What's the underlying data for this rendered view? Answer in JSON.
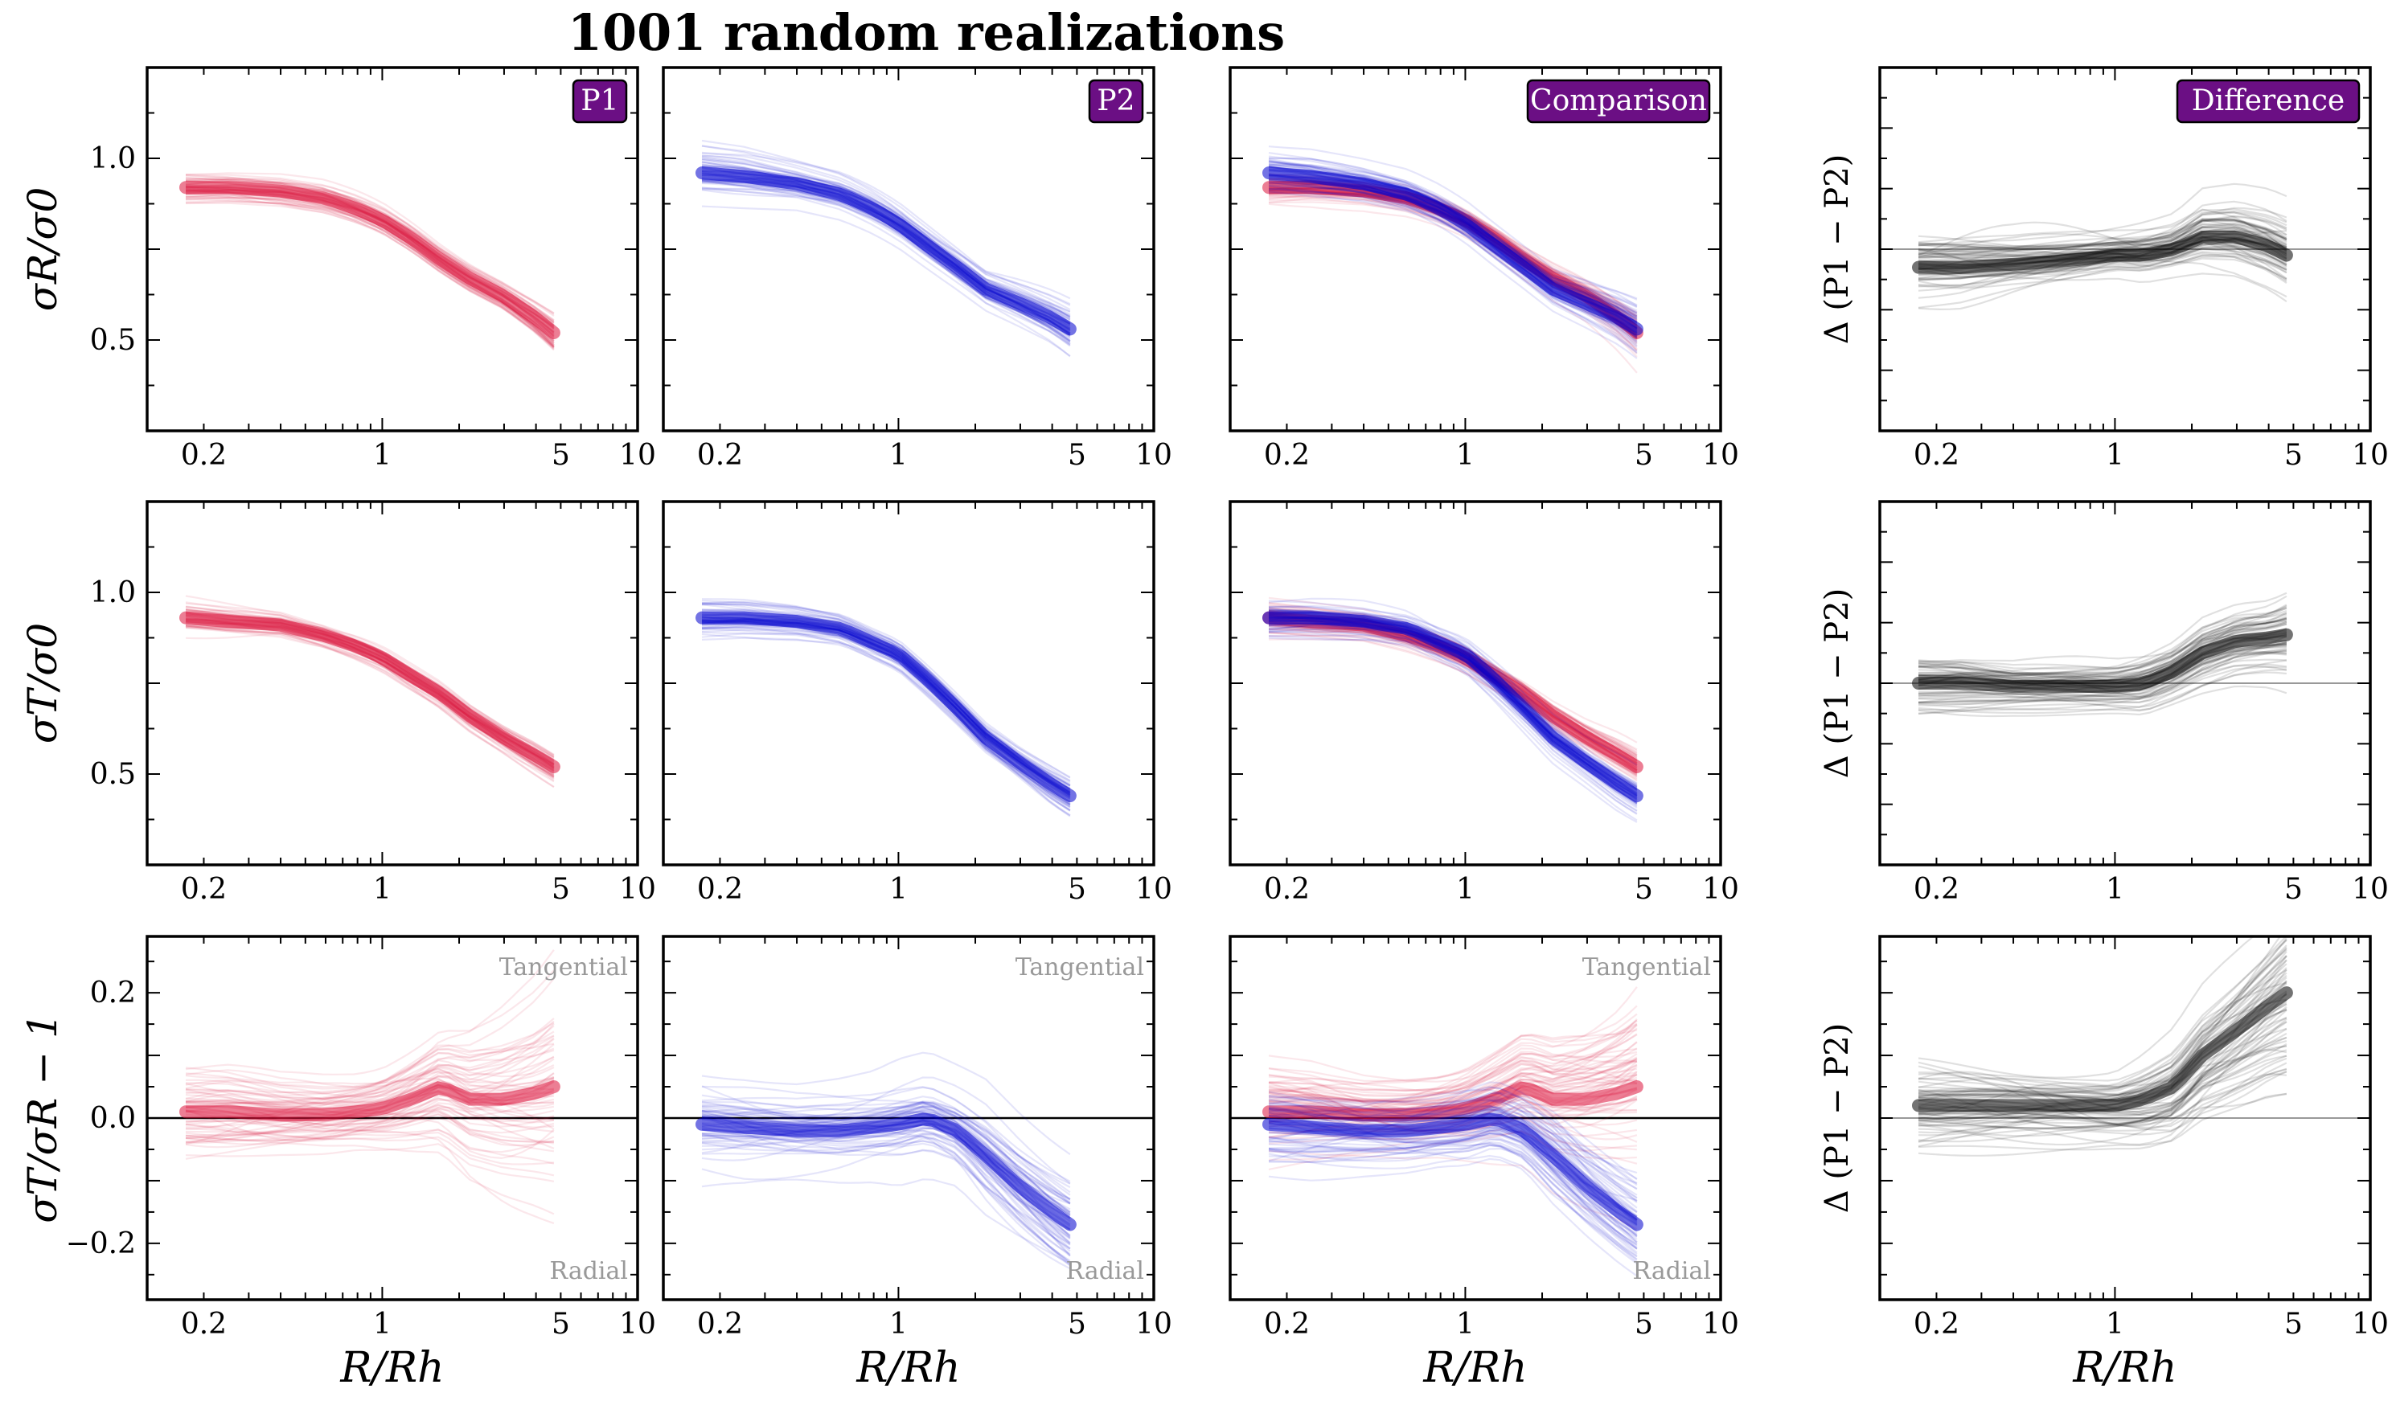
{
  "figure": {
    "title": "1001 random realizations"
  },
  "colors": {
    "p1": "#dc143c",
    "p2": "#0000cd",
    "diff": "#000000",
    "badge": "#6b0f84",
    "annotation": "#999999",
    "zero_line": "#000000",
    "diff_zero_line": "#999999"
  },
  "axis_text": {
    "xlabel": "R/Rh",
    "ylabel_row1": "σR/σ0",
    "ylabel_row2": "σT/σ0",
    "ylabel_row3": "σT/σR − 1",
    "ylabel_diff": "Δ (P1 − P2)"
  },
  "badges": {
    "p1": "P1",
    "p2": "P2",
    "comparison": "Comparison",
    "difference": "Difference"
  },
  "annotations": {
    "tangential": "Tangential",
    "radial": "Radial"
  },
  "chart_data": [
    {
      "panel": "row1-P1",
      "type": "line",
      "ylabel": "σR/σ0",
      "xlim": [
        0.12,
        10
      ],
      "ylim": [
        0.25,
        1.25
      ],
      "xscale": "log",
      "xticks": [
        0.2,
        1,
        5,
        10
      ],
      "yticks": [
        0.5,
        1.0
      ],
      "series": [
        {
          "name": "P1",
          "color": "#dc143c",
          "x": [
            0.17,
            0.25,
            0.4,
            0.6,
            0.8,
            1,
            1.3,
            1.7,
            2.2,
            3,
            4,
            4.7
          ],
          "median": [
            0.92,
            0.92,
            0.91,
            0.89,
            0.86,
            0.83,
            0.78,
            0.72,
            0.67,
            0.62,
            0.56,
            0.52
          ],
          "spread": [
            0.03,
            0.03,
            0.03,
            0.03,
            0.03,
            0.03,
            0.03,
            0.03,
            0.03,
            0.03,
            0.035,
            0.04
          ]
        }
      ]
    },
    {
      "panel": "row1-P2",
      "type": "line",
      "xlim": [
        0.12,
        10
      ],
      "ylim": [
        0.25,
        1.25
      ],
      "xscale": "log",
      "xticks": [
        0.2,
        1,
        5,
        10
      ],
      "series": [
        {
          "name": "P2",
          "color": "#0000cd",
          "x": [
            0.17,
            0.25,
            0.4,
            0.6,
            0.8,
            1,
            1.3,
            1.7,
            2.2,
            3,
            4,
            4.7
          ],
          "median": [
            0.96,
            0.95,
            0.93,
            0.9,
            0.86,
            0.82,
            0.76,
            0.7,
            0.64,
            0.6,
            0.56,
            0.53
          ],
          "spread": [
            0.04,
            0.04,
            0.035,
            0.035,
            0.035,
            0.035,
            0.035,
            0.035,
            0.035,
            0.04,
            0.045,
            0.05
          ]
        }
      ]
    },
    {
      "panel": "row1-Comparison",
      "type": "line",
      "xlim": [
        0.12,
        10
      ],
      "ylim": [
        0.25,
        1.25
      ],
      "xscale": "log",
      "xticks": [
        0.2,
        1,
        5,
        10
      ],
      "series": [
        {
          "name": "P1",
          "color": "#dc143c",
          "x": [
            0.17,
            0.25,
            0.4,
            0.6,
            0.8,
            1,
            1.3,
            1.7,
            2.2,
            3,
            4,
            4.7
          ],
          "median": [
            0.92,
            0.92,
            0.91,
            0.89,
            0.86,
            0.83,
            0.78,
            0.72,
            0.67,
            0.62,
            0.56,
            0.52
          ],
          "spread": [
            0.03,
            0.03,
            0.03,
            0.03,
            0.03,
            0.03,
            0.03,
            0.03,
            0.03,
            0.03,
            0.035,
            0.04
          ]
        },
        {
          "name": "P2",
          "color": "#0000cd",
          "x": [
            0.17,
            0.25,
            0.4,
            0.6,
            0.8,
            1,
            1.3,
            1.7,
            2.2,
            3,
            4,
            4.7
          ],
          "median": [
            0.96,
            0.95,
            0.93,
            0.9,
            0.86,
            0.82,
            0.76,
            0.7,
            0.64,
            0.6,
            0.56,
            0.53
          ],
          "spread": [
            0.04,
            0.04,
            0.035,
            0.035,
            0.035,
            0.035,
            0.035,
            0.035,
            0.035,
            0.04,
            0.045,
            0.05
          ]
        }
      ]
    },
    {
      "panel": "row1-Difference",
      "type": "line",
      "ylabel": "Δ (P1 − P2)",
      "xlim": [
        0.12,
        10
      ],
      "ylim": [
        -0.3,
        0.3
      ],
      "xscale": "log",
      "xticks": [
        0.2,
        1,
        5,
        10
      ],
      "zero_line": 0,
      "series": [
        {
          "name": "Δ",
          "color": "#000000",
          "x": [
            0.17,
            0.25,
            0.4,
            0.6,
            0.8,
            1,
            1.3,
            1.7,
            2.2,
            3,
            4,
            4.7
          ],
          "median": [
            -0.03,
            -0.03,
            -0.025,
            -0.02,
            -0.015,
            -0.01,
            -0.01,
            0.0,
            0.02,
            0.02,
            0.005,
            -0.01
          ],
          "spread": [
            0.04,
            0.04,
            0.035,
            0.035,
            0.035,
            0.035,
            0.04,
            0.04,
            0.05,
            0.05,
            0.05,
            0.05
          ]
        }
      ]
    },
    {
      "panel": "row2-P1",
      "type": "line",
      "ylabel": "σT/σ0",
      "xlim": [
        0.12,
        10
      ],
      "ylim": [
        0.25,
        1.25
      ],
      "xscale": "log",
      "xticks": [
        0.2,
        1,
        5,
        10
      ],
      "yticks": [
        0.5,
        1.0
      ],
      "series": [
        {
          "name": "P1",
          "color": "#dc143c",
          "x": [
            0.17,
            0.25,
            0.4,
            0.6,
            0.8,
            1,
            1.3,
            1.7,
            2.2,
            3,
            4,
            4.7
          ],
          "median": [
            0.93,
            0.92,
            0.91,
            0.88,
            0.85,
            0.82,
            0.77,
            0.72,
            0.66,
            0.6,
            0.55,
            0.52
          ],
          "spread": [
            0.03,
            0.03,
            0.03,
            0.03,
            0.03,
            0.03,
            0.03,
            0.03,
            0.03,
            0.03,
            0.035,
            0.035
          ]
        }
      ]
    },
    {
      "panel": "row2-P2",
      "type": "line",
      "xlim": [
        0.12,
        10
      ],
      "ylim": [
        0.25,
        1.25
      ],
      "xscale": "log",
      "xticks": [
        0.2,
        1,
        5,
        10
      ],
      "series": [
        {
          "name": "P2",
          "color": "#0000cd",
          "x": [
            0.17,
            0.25,
            0.4,
            0.6,
            0.8,
            1,
            1.3,
            1.7,
            2.2,
            3,
            4,
            4.7
          ],
          "median": [
            0.93,
            0.93,
            0.92,
            0.9,
            0.86,
            0.83,
            0.76,
            0.68,
            0.6,
            0.53,
            0.47,
            0.44
          ],
          "spread": [
            0.035,
            0.035,
            0.035,
            0.035,
            0.035,
            0.035,
            0.035,
            0.035,
            0.035,
            0.035,
            0.04,
            0.04
          ]
        }
      ]
    },
    {
      "panel": "row2-Comparison",
      "type": "line",
      "xlim": [
        0.12,
        10
      ],
      "ylim": [
        0.25,
        1.25
      ],
      "xscale": "log",
      "xticks": [
        0.2,
        1,
        5,
        10
      ],
      "series": [
        {
          "name": "P1",
          "color": "#dc143c",
          "x": [
            0.17,
            0.25,
            0.4,
            0.6,
            0.8,
            1,
            1.3,
            1.7,
            2.2,
            3,
            4,
            4.7
          ],
          "median": [
            0.93,
            0.92,
            0.91,
            0.88,
            0.85,
            0.82,
            0.77,
            0.72,
            0.66,
            0.6,
            0.55,
            0.52
          ],
          "spread": [
            0.03,
            0.03,
            0.03,
            0.03,
            0.03,
            0.03,
            0.03,
            0.03,
            0.03,
            0.03,
            0.035,
            0.035
          ]
        },
        {
          "name": "P2",
          "color": "#0000cd",
          "x": [
            0.17,
            0.25,
            0.4,
            0.6,
            0.8,
            1,
            1.3,
            1.7,
            2.2,
            3,
            4,
            4.7
          ],
          "median": [
            0.93,
            0.93,
            0.92,
            0.9,
            0.86,
            0.83,
            0.76,
            0.68,
            0.6,
            0.53,
            0.47,
            0.44
          ],
          "spread": [
            0.035,
            0.035,
            0.035,
            0.035,
            0.035,
            0.035,
            0.035,
            0.035,
            0.035,
            0.035,
            0.04,
            0.04
          ]
        }
      ]
    },
    {
      "panel": "row2-Difference",
      "type": "line",
      "ylabel": "Δ (P1 − P2)",
      "xlim": [
        0.12,
        10
      ],
      "ylim": [
        -0.3,
        0.3
      ],
      "xscale": "log",
      "xticks": [
        0.2,
        1,
        5,
        10
      ],
      "zero_line": 0,
      "series": [
        {
          "name": "Δ",
          "color": "#000000",
          "x": [
            0.17,
            0.25,
            0.4,
            0.6,
            0.8,
            1,
            1.3,
            1.7,
            2.2,
            3,
            4,
            4.7
          ],
          "median": [
            0.0,
            0.0,
            -0.005,
            -0.005,
            -0.005,
            -0.005,
            0.0,
            0.02,
            0.05,
            0.07,
            0.075,
            0.08
          ],
          "spread": [
            0.035,
            0.035,
            0.03,
            0.03,
            0.03,
            0.03,
            0.035,
            0.035,
            0.04,
            0.04,
            0.04,
            0.045
          ]
        }
      ]
    },
    {
      "panel": "row3-P1",
      "type": "line",
      "ylabel": "σT/σR − 1",
      "xlim": [
        0.12,
        10
      ],
      "ylim": [
        -0.29,
        0.29
      ],
      "xscale": "log",
      "xticks": [
        0.2,
        1,
        5,
        10
      ],
      "yticks": [
        -0.2,
        0.0,
        0.2
      ],
      "zero_line": 0,
      "series": [
        {
          "name": "P1",
          "color": "#dc143c",
          "x": [
            0.17,
            0.25,
            0.4,
            0.6,
            0.8,
            1,
            1.3,
            1.7,
            2.2,
            3,
            4,
            4.7
          ],
          "median": [
            0.01,
            0.01,
            0.005,
            0.005,
            0.01,
            0.015,
            0.03,
            0.05,
            0.03,
            0.03,
            0.04,
            0.05
          ],
          "spread": [
            0.05,
            0.05,
            0.045,
            0.045,
            0.045,
            0.05,
            0.06,
            0.07,
            0.08,
            0.09,
            0.1,
            0.11
          ]
        }
      ]
    },
    {
      "panel": "row3-P2",
      "type": "line",
      "xlim": [
        0.12,
        10
      ],
      "ylim": [
        -0.29,
        0.29
      ],
      "xscale": "log",
      "xticks": [
        0.2,
        1,
        5,
        10
      ],
      "zero_line": 0,
      "series": [
        {
          "name": "P2",
          "color": "#0000cd",
          "x": [
            0.17,
            0.25,
            0.4,
            0.6,
            0.8,
            1,
            1.3,
            1.7,
            2.2,
            3,
            4,
            4.7
          ],
          "median": [
            -0.01,
            -0.015,
            -0.02,
            -0.02,
            -0.015,
            -0.01,
            0.0,
            -0.02,
            -0.06,
            -0.11,
            -0.15,
            -0.17
          ],
          "spread": [
            0.05,
            0.05,
            0.045,
            0.045,
            0.045,
            0.05,
            0.05,
            0.05,
            0.06,
            0.06,
            0.06,
            0.06
          ]
        }
      ]
    },
    {
      "panel": "row3-Comparison",
      "type": "line",
      "xlim": [
        0.12,
        10
      ],
      "ylim": [
        -0.29,
        0.29
      ],
      "xscale": "log",
      "xticks": [
        0.2,
        1,
        5,
        10
      ],
      "zero_line": 0,
      "series": [
        {
          "name": "P1",
          "color": "#dc143c",
          "x": [
            0.17,
            0.25,
            0.4,
            0.6,
            0.8,
            1,
            1.3,
            1.7,
            2.2,
            3,
            4,
            4.7
          ],
          "median": [
            0.01,
            0.01,
            0.005,
            0.005,
            0.01,
            0.015,
            0.03,
            0.05,
            0.03,
            0.03,
            0.04,
            0.05
          ],
          "spread": [
            0.05,
            0.05,
            0.045,
            0.045,
            0.045,
            0.05,
            0.06,
            0.07,
            0.08,
            0.09,
            0.1,
            0.11
          ]
        },
        {
          "name": "P2",
          "color": "#0000cd",
          "x": [
            0.17,
            0.25,
            0.4,
            0.6,
            0.8,
            1,
            1.3,
            1.7,
            2.2,
            3,
            4,
            4.7
          ],
          "median": [
            -0.01,
            -0.015,
            -0.02,
            -0.02,
            -0.015,
            -0.01,
            0.0,
            -0.02,
            -0.06,
            -0.11,
            -0.15,
            -0.17
          ],
          "spread": [
            0.05,
            0.05,
            0.045,
            0.045,
            0.045,
            0.05,
            0.05,
            0.05,
            0.06,
            0.06,
            0.06,
            0.06
          ]
        }
      ]
    },
    {
      "panel": "row3-Difference",
      "type": "line",
      "ylabel": "Δ (P1 − P2)",
      "xlim": [
        0.12,
        10
      ],
      "ylim": [
        -0.29,
        0.29
      ],
      "xscale": "log",
      "xticks": [
        0.2,
        1,
        5,
        10
      ],
      "zero_line": 0,
      "series": [
        {
          "name": "Δ",
          "color": "#000000",
          "x": [
            0.17,
            0.25,
            0.4,
            0.6,
            0.8,
            1,
            1.3,
            1.7,
            2.2,
            3,
            4,
            4.7
          ],
          "median": [
            0.02,
            0.02,
            0.02,
            0.02,
            0.02,
            0.02,
            0.03,
            0.05,
            0.1,
            0.14,
            0.18,
            0.2
          ],
          "spread": [
            0.05,
            0.05,
            0.05,
            0.05,
            0.05,
            0.05,
            0.06,
            0.07,
            0.08,
            0.09,
            0.1,
            0.11
          ]
        }
      ]
    }
  ]
}
